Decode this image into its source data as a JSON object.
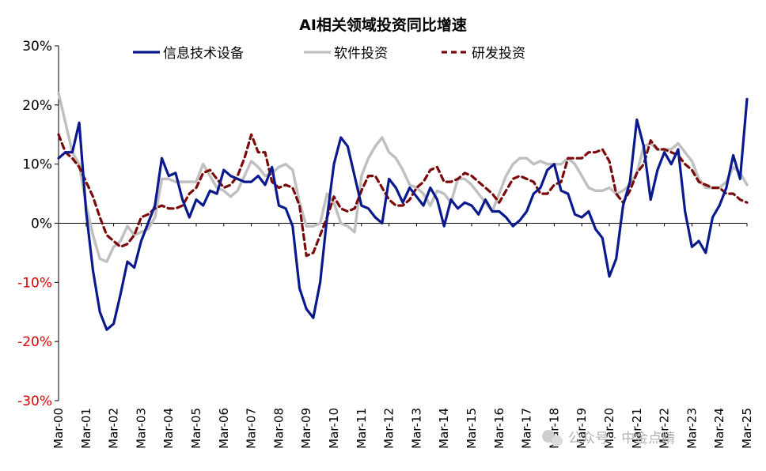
{
  "chart_data": {
    "type": "line",
    "title": "AI相关领域投资同比增速",
    "xlabel": "",
    "ylabel": "",
    "ylim": [
      -30,
      30
    ],
    "yticks": [
      30,
      20,
      10,
      0,
      -10,
      -20,
      -30
    ],
    "ytick_labels": [
      "30%",
      "20%",
      "10%",
      "0%",
      "-10%",
      "-20%",
      "-30%"
    ],
    "negative_tick_color": "#E00000",
    "x_start": 2000.0,
    "x_end": 2025.0,
    "x_tick_labels": [
      "Mar-00",
      "Mar-01",
      "Mar-02",
      "Mar-03",
      "Mar-04",
      "Mar-05",
      "Mar-06",
      "Mar-07",
      "Mar-08",
      "Mar-09",
      "Mar-10",
      "Mar-11",
      "Mar-12",
      "Mar-13",
      "Mar-14",
      "Mar-15",
      "Mar-16",
      "Mar-17",
      "Mar-18",
      "Mar-19",
      "Mar-20",
      "Mar-21",
      "Mar-22",
      "Mar-23",
      "Mar-24",
      "Mar-25"
    ],
    "legend_position": "top",
    "series": [
      {
        "name": "信息技术设备",
        "color": "#0A1A8C",
        "style": "solid",
        "points": [
          [
            2000.0,
            11
          ],
          [
            2000.25,
            12
          ],
          [
            2000.5,
            12
          ],
          [
            2000.75,
            17
          ],
          [
            2001.0,
            2
          ],
          [
            2001.25,
            -8
          ],
          [
            2001.5,
            -15
          ],
          [
            2001.75,
            -18
          ],
          [
            2002.0,
            -17
          ],
          [
            2002.25,
            -12
          ],
          [
            2002.5,
            -6.5
          ],
          [
            2002.75,
            -7.5
          ],
          [
            2003.0,
            -3
          ],
          [
            2003.25,
            0
          ],
          [
            2003.5,
            3
          ],
          [
            2003.75,
            11
          ],
          [
            2004.0,
            8
          ],
          [
            2004.25,
            8.5
          ],
          [
            2004.5,
            4
          ],
          [
            2004.75,
            1
          ],
          [
            2005.0,
            4
          ],
          [
            2005.25,
            3
          ],
          [
            2005.5,
            5.5
          ],
          [
            2005.75,
            5
          ],
          [
            2006.0,
            9
          ],
          [
            2006.25,
            8
          ],
          [
            2006.5,
            7.5
          ],
          [
            2006.75,
            7
          ],
          [
            2007.0,
            7
          ],
          [
            2007.25,
            8
          ],
          [
            2007.5,
            6.5
          ],
          [
            2007.75,
            9.5
          ],
          [
            2008.0,
            3
          ],
          [
            2008.25,
            2.5
          ],
          [
            2008.5,
            -0.5
          ],
          [
            2008.75,
            -11
          ],
          [
            2009.0,
            -14.5
          ],
          [
            2009.25,
            -16
          ],
          [
            2009.5,
            -10
          ],
          [
            2009.75,
            1
          ],
          [
            2010.0,
            10
          ],
          [
            2010.25,
            14.5
          ],
          [
            2010.5,
            13
          ],
          [
            2010.75,
            8
          ],
          [
            2011.0,
            3
          ],
          [
            2011.25,
            2.5
          ],
          [
            2011.5,
            1
          ],
          [
            2011.75,
            0
          ],
          [
            2012.0,
            7.5
          ],
          [
            2012.25,
            6
          ],
          [
            2012.5,
            3.5
          ],
          [
            2012.75,
            6
          ],
          [
            2013.0,
            4.5
          ],
          [
            2013.25,
            3
          ],
          [
            2013.5,
            6
          ],
          [
            2013.75,
            4
          ],
          [
            2014.0,
            -0.5
          ],
          [
            2014.25,
            4
          ],
          [
            2014.5,
            2.5
          ],
          [
            2014.75,
            3.5
          ],
          [
            2015.0,
            3
          ],
          [
            2015.25,
            1.5
          ],
          [
            2015.5,
            4
          ],
          [
            2015.75,
            2
          ],
          [
            2016.0,
            2
          ],
          [
            2016.25,
            1
          ],
          [
            2016.5,
            -0.5
          ],
          [
            2016.75,
            0.5
          ],
          [
            2017.0,
            2
          ],
          [
            2017.25,
            5
          ],
          [
            2017.5,
            6
          ],
          [
            2017.75,
            9
          ],
          [
            2018.0,
            10
          ],
          [
            2018.25,
            5.5
          ],
          [
            2018.5,
            5
          ],
          [
            2018.75,
            1.5
          ],
          [
            2019.0,
            1
          ],
          [
            2019.25,
            2
          ],
          [
            2019.5,
            -1
          ],
          [
            2019.75,
            -2.5
          ],
          [
            2020.0,
            -9
          ],
          [
            2020.25,
            -6
          ],
          [
            2020.5,
            3
          ],
          [
            2020.75,
            7
          ],
          [
            2021.0,
            17.5
          ],
          [
            2021.25,
            13
          ],
          [
            2021.5,
            4
          ],
          [
            2021.75,
            9
          ],
          [
            2022.0,
            12
          ],
          [
            2022.25,
            10
          ],
          [
            2022.5,
            12.5
          ],
          [
            2022.75,
            2
          ],
          [
            2023.0,
            -4
          ],
          [
            2023.25,
            -3
          ],
          [
            2023.5,
            -5
          ],
          [
            2023.75,
            1
          ],
          [
            2024.0,
            3
          ],
          [
            2024.25,
            6
          ],
          [
            2024.5,
            11.5
          ],
          [
            2024.75,
            7.5
          ],
          [
            2025.0,
            21
          ]
        ]
      },
      {
        "name": "软件投资",
        "color": "#C0C0C0",
        "style": "solid",
        "points": [
          [
            2000.0,
            22
          ],
          [
            2000.25,
            17
          ],
          [
            2000.5,
            12
          ],
          [
            2000.75,
            10
          ],
          [
            2001.0,
            3
          ],
          [
            2001.25,
            -2
          ],
          [
            2001.5,
            -6
          ],
          [
            2001.75,
            -6.5
          ],
          [
            2002.0,
            -4
          ],
          [
            2002.25,
            -3
          ],
          [
            2002.5,
            -0.5
          ],
          [
            2002.75,
            -2
          ],
          [
            2003.0,
            -1.5
          ],
          [
            2003.25,
            -1
          ],
          [
            2003.5,
            1
          ],
          [
            2003.75,
            7.5
          ],
          [
            2004.0,
            7.5
          ],
          [
            2004.25,
            7
          ],
          [
            2004.5,
            7
          ],
          [
            2004.75,
            7
          ],
          [
            2005.0,
            7
          ],
          [
            2005.25,
            10
          ],
          [
            2005.5,
            8
          ],
          [
            2005.75,
            6
          ],
          [
            2006.0,
            5.5
          ],
          [
            2006.25,
            4.5
          ],
          [
            2006.5,
            5.5
          ],
          [
            2006.75,
            8
          ],
          [
            2007.0,
            10.5
          ],
          [
            2007.25,
            9.5
          ],
          [
            2007.5,
            8
          ],
          [
            2007.75,
            8.5
          ],
          [
            2008.0,
            9.5
          ],
          [
            2008.25,
            10
          ],
          [
            2008.5,
            9
          ],
          [
            2008.75,
            3.5
          ],
          [
            2009.0,
            -0.5
          ],
          [
            2009.25,
            -0.5
          ],
          [
            2009.5,
            0
          ],
          [
            2009.75,
            5
          ],
          [
            2010.0,
            3.5
          ],
          [
            2010.25,
            0
          ],
          [
            2010.5,
            -0.5
          ],
          [
            2010.75,
            -1.5
          ],
          [
            2011.0,
            8
          ],
          [
            2011.25,
            11
          ],
          [
            2011.5,
            13
          ],
          [
            2011.75,
            14.5
          ],
          [
            2012.0,
            12
          ],
          [
            2012.25,
            11
          ],
          [
            2012.5,
            9
          ],
          [
            2012.75,
            6.5
          ],
          [
            2013.0,
            6
          ],
          [
            2013.25,
            5
          ],
          [
            2013.5,
            3
          ],
          [
            2013.75,
            5.5
          ],
          [
            2014.0,
            5
          ],
          [
            2014.25,
            3.5
          ],
          [
            2014.5,
            7.5
          ],
          [
            2014.75,
            7.5
          ],
          [
            2015.0,
            6.5
          ],
          [
            2015.25,
            5
          ],
          [
            2015.5,
            3.5
          ],
          [
            2015.75,
            2
          ],
          [
            2016.0,
            5
          ],
          [
            2016.25,
            8
          ],
          [
            2016.5,
            10
          ],
          [
            2016.75,
            11
          ],
          [
            2017.0,
            11
          ],
          [
            2017.25,
            10
          ],
          [
            2017.5,
            10.5
          ],
          [
            2017.75,
            10
          ],
          [
            2018.0,
            10
          ],
          [
            2018.25,
            10
          ],
          [
            2018.5,
            11
          ],
          [
            2018.75,
            10
          ],
          [
            2019.0,
            8
          ],
          [
            2019.25,
            6
          ],
          [
            2019.5,
            5.5
          ],
          [
            2019.75,
            5.5
          ],
          [
            2020.0,
            6
          ],
          [
            2020.25,
            5
          ],
          [
            2020.5,
            5.5
          ],
          [
            2020.75,
            6.5
          ],
          [
            2021.0,
            8.5
          ],
          [
            2021.25,
            13
          ],
          [
            2021.5,
            13.5
          ],
          [
            2021.75,
            12.5
          ],
          [
            2022.0,
            12.5
          ],
          [
            2022.25,
            12.5
          ],
          [
            2022.5,
            13.5
          ],
          [
            2022.75,
            12
          ],
          [
            2023.0,
            10.5
          ],
          [
            2023.25,
            7.5
          ],
          [
            2023.5,
            6
          ],
          [
            2023.75,
            6
          ],
          [
            2024.0,
            6
          ],
          [
            2024.25,
            7
          ],
          [
            2024.5,
            9.5
          ],
          [
            2024.75,
            8.5
          ],
          [
            2025.0,
            6.5
          ]
        ]
      },
      {
        "name": "研发投资",
        "color": "#7A0A0A",
        "style": "dashed",
        "points": [
          [
            2000.0,
            15
          ],
          [
            2000.25,
            12
          ],
          [
            2000.5,
            11
          ],
          [
            2000.75,
            9.5
          ],
          [
            2001.0,
            7
          ],
          [
            2001.25,
            4.5
          ],
          [
            2001.5,
            1
          ],
          [
            2001.75,
            -2
          ],
          [
            2002.0,
            -3
          ],
          [
            2002.25,
            -4
          ],
          [
            2002.5,
            -3.5
          ],
          [
            2002.75,
            -2
          ],
          [
            2003.0,
            1
          ],
          [
            2003.25,
            1.5
          ],
          [
            2003.5,
            2.5
          ],
          [
            2003.75,
            3
          ],
          [
            2004.0,
            2.5
          ],
          [
            2004.25,
            2.5
          ],
          [
            2004.5,
            3
          ],
          [
            2004.75,
            5
          ],
          [
            2005.0,
            6
          ],
          [
            2005.25,
            8.5
          ],
          [
            2005.5,
            9
          ],
          [
            2005.75,
            7.5
          ],
          [
            2006.0,
            6
          ],
          [
            2006.25,
            6.5
          ],
          [
            2006.5,
            8
          ],
          [
            2006.75,
            11
          ],
          [
            2007.0,
            15
          ],
          [
            2007.25,
            12
          ],
          [
            2007.5,
            12
          ],
          [
            2007.75,
            7
          ],
          [
            2008.0,
            6
          ],
          [
            2008.25,
            6.5
          ],
          [
            2008.5,
            6
          ],
          [
            2008.75,
            3
          ],
          [
            2009.0,
            -5.5
          ],
          [
            2009.25,
            -5
          ],
          [
            2009.5,
            -2
          ],
          [
            2009.75,
            1
          ],
          [
            2010.0,
            4.5
          ],
          [
            2010.25,
            2.5
          ],
          [
            2010.5,
            2
          ],
          [
            2010.75,
            2.5
          ],
          [
            2011.0,
            5.5
          ],
          [
            2011.25,
            8
          ],
          [
            2011.5,
            8
          ],
          [
            2011.75,
            6
          ],
          [
            2012.0,
            4
          ],
          [
            2012.25,
            3
          ],
          [
            2012.5,
            3
          ],
          [
            2012.75,
            4
          ],
          [
            2013.0,
            6
          ],
          [
            2013.25,
            7
          ],
          [
            2013.5,
            9
          ],
          [
            2013.75,
            9.5
          ],
          [
            2014.0,
            7
          ],
          [
            2014.25,
            7
          ],
          [
            2014.5,
            7.5
          ],
          [
            2014.75,
            8.5
          ],
          [
            2015.0,
            8
          ],
          [
            2015.25,
            7
          ],
          [
            2015.5,
            6
          ],
          [
            2015.75,
            5
          ],
          [
            2016.0,
            3.5
          ],
          [
            2016.25,
            5.5
          ],
          [
            2016.5,
            7.5
          ],
          [
            2016.75,
            8
          ],
          [
            2017.0,
            7.5
          ],
          [
            2017.25,
            7
          ],
          [
            2017.5,
            5
          ],
          [
            2017.75,
            5
          ],
          [
            2018.0,
            6.5
          ],
          [
            2018.25,
            7
          ],
          [
            2018.5,
            11
          ],
          [
            2018.75,
            11
          ],
          [
            2019.0,
            11
          ],
          [
            2019.25,
            12
          ],
          [
            2019.5,
            12
          ],
          [
            2019.75,
            12.5
          ],
          [
            2020.0,
            10.5
          ],
          [
            2020.25,
            5
          ],
          [
            2020.5,
            3.5
          ],
          [
            2020.75,
            5.5
          ],
          [
            2021.0,
            8.5
          ],
          [
            2021.25,
            10
          ],
          [
            2021.5,
            14
          ],
          [
            2021.75,
            12.5
          ],
          [
            2022.0,
            12.5
          ],
          [
            2022.25,
            12
          ],
          [
            2022.5,
            11.5
          ],
          [
            2022.75,
            10
          ],
          [
            2023.0,
            9
          ],
          [
            2023.25,
            7
          ],
          [
            2023.5,
            6.5
          ],
          [
            2023.75,
            6
          ],
          [
            2024.0,
            6
          ],
          [
            2024.25,
            5
          ],
          [
            2024.5,
            5
          ],
          [
            2024.75,
            4
          ],
          [
            2025.0,
            3.5
          ]
        ]
      }
    ]
  },
  "watermark": {
    "text": "公众号 · 中金点睛"
  }
}
